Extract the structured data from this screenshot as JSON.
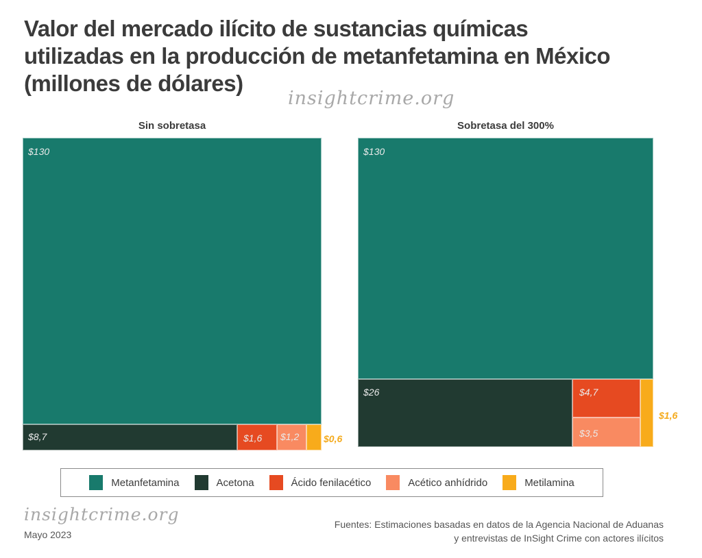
{
  "header": {
    "title_line1": "Valor del mercado ilícito de sustancias químicas",
    "title_line2": "utilizadas en la producción de metanfetamina en México",
    "title_line3": "(millones de dólares)",
    "watermark": "insightcrime.org"
  },
  "colors": {
    "Metanfetamina": "#187a6c",
    "Acetona": "#213a31",
    "Ácido fenilacético": "#e64a21",
    "Acético anhídrido": "#f98a61",
    "Metilamina": "#f8ab1b"
  },
  "chart_data": [
    {
      "type": "treemap",
      "title": "Sin sobretasa",
      "unit": "millones de dólares",
      "categories": [
        "Metanfetamina",
        "Acetona",
        "Ácido fenilacético",
        "Acético anhídrido",
        "Metilamina"
      ],
      "values": [
        130,
        8.7,
        1.6,
        1.2,
        0.6
      ],
      "labels": [
        "$130",
        "$8,7",
        "$1,6",
        "$1,2",
        "$0,6"
      ]
    },
    {
      "type": "treemap",
      "title": "Sobretasa del 300%",
      "unit": "millones de dólares",
      "categories": [
        "Metanfetamina",
        "Acetona",
        "Ácido fenilacético",
        "Acético anhídrido",
        "Metilamina"
      ],
      "values": [
        130,
        26,
        4.7,
        3.5,
        1.6
      ],
      "labels": [
        "$130",
        "$26",
        "$4,7",
        "$3,5",
        "$1,6"
      ]
    }
  ],
  "legend": [
    "Metanfetamina",
    "Acetona",
    "Ácido fenilacético",
    "Acético anhídrido",
    "Metilamina"
  ],
  "footer": {
    "watermark": "insightcrime.org",
    "date": "Mayo 2023",
    "source_line1": "Fuentes: Estimaciones basadas en datos de la Agencia Nacional de Aduanas",
    "source_line2": "y entrevistas de InSight Crime con actores ilícitos"
  }
}
